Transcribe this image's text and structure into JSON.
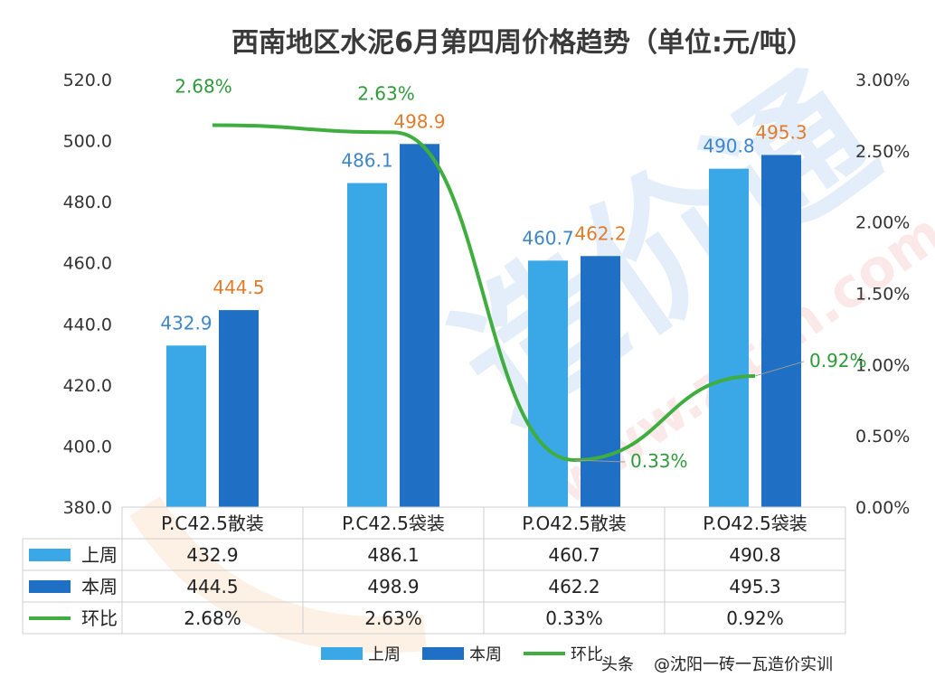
{
  "chart_data": {
    "type": "bar",
    "title": "西南地区水泥6月第四周价格趋势（单位:元/吨）",
    "categories": [
      "P.C42.5散装",
      "P.C42.5袋装",
      "P.O42.5散装",
      "P.O42.5袋装"
    ],
    "series": [
      {
        "name": "上周",
        "type": "bar",
        "axis": "left",
        "color": "#3aa8e6",
        "values": [
          432.9,
          486.1,
          460.7,
          490.8
        ],
        "labels": [
          "432.9",
          "486.1",
          "460.7",
          "490.8"
        ]
      },
      {
        "name": "本周",
        "type": "bar",
        "axis": "left",
        "color": "#1f6fc4",
        "values": [
          444.5,
          498.9,
          462.2,
          495.3
        ],
        "labels": [
          "444.5",
          "498.9",
          "462.2",
          "495.3"
        ]
      },
      {
        "name": "环比",
        "type": "line",
        "axis": "right",
        "color": "#3fae3f",
        "values": [
          2.68,
          2.63,
          0.33,
          0.92
        ],
        "labels": [
          "2.68%",
          "2.63%",
          "0.33%",
          "0.92%"
        ]
      }
    ],
    "y_left": {
      "min": 380,
      "max": 520,
      "step": 20,
      "ticks": [
        "380.0",
        "400.0",
        "420.0",
        "440.0",
        "460.0",
        "480.0",
        "500.0",
        "520.0"
      ]
    },
    "y_right": {
      "min": 0,
      "max": 3,
      "step": 0.5,
      "ticks": [
        "0.00%",
        "0.50%",
        "1.00%",
        "1.50%",
        "2.00%",
        "2.50%",
        "3.00%"
      ]
    },
    "legend_position": "bottom",
    "grid": false,
    "data_table": true
  },
  "watermark": {
    "text": "@沈阳一砖一瓦造价实训",
    "prefix": "头条"
  }
}
